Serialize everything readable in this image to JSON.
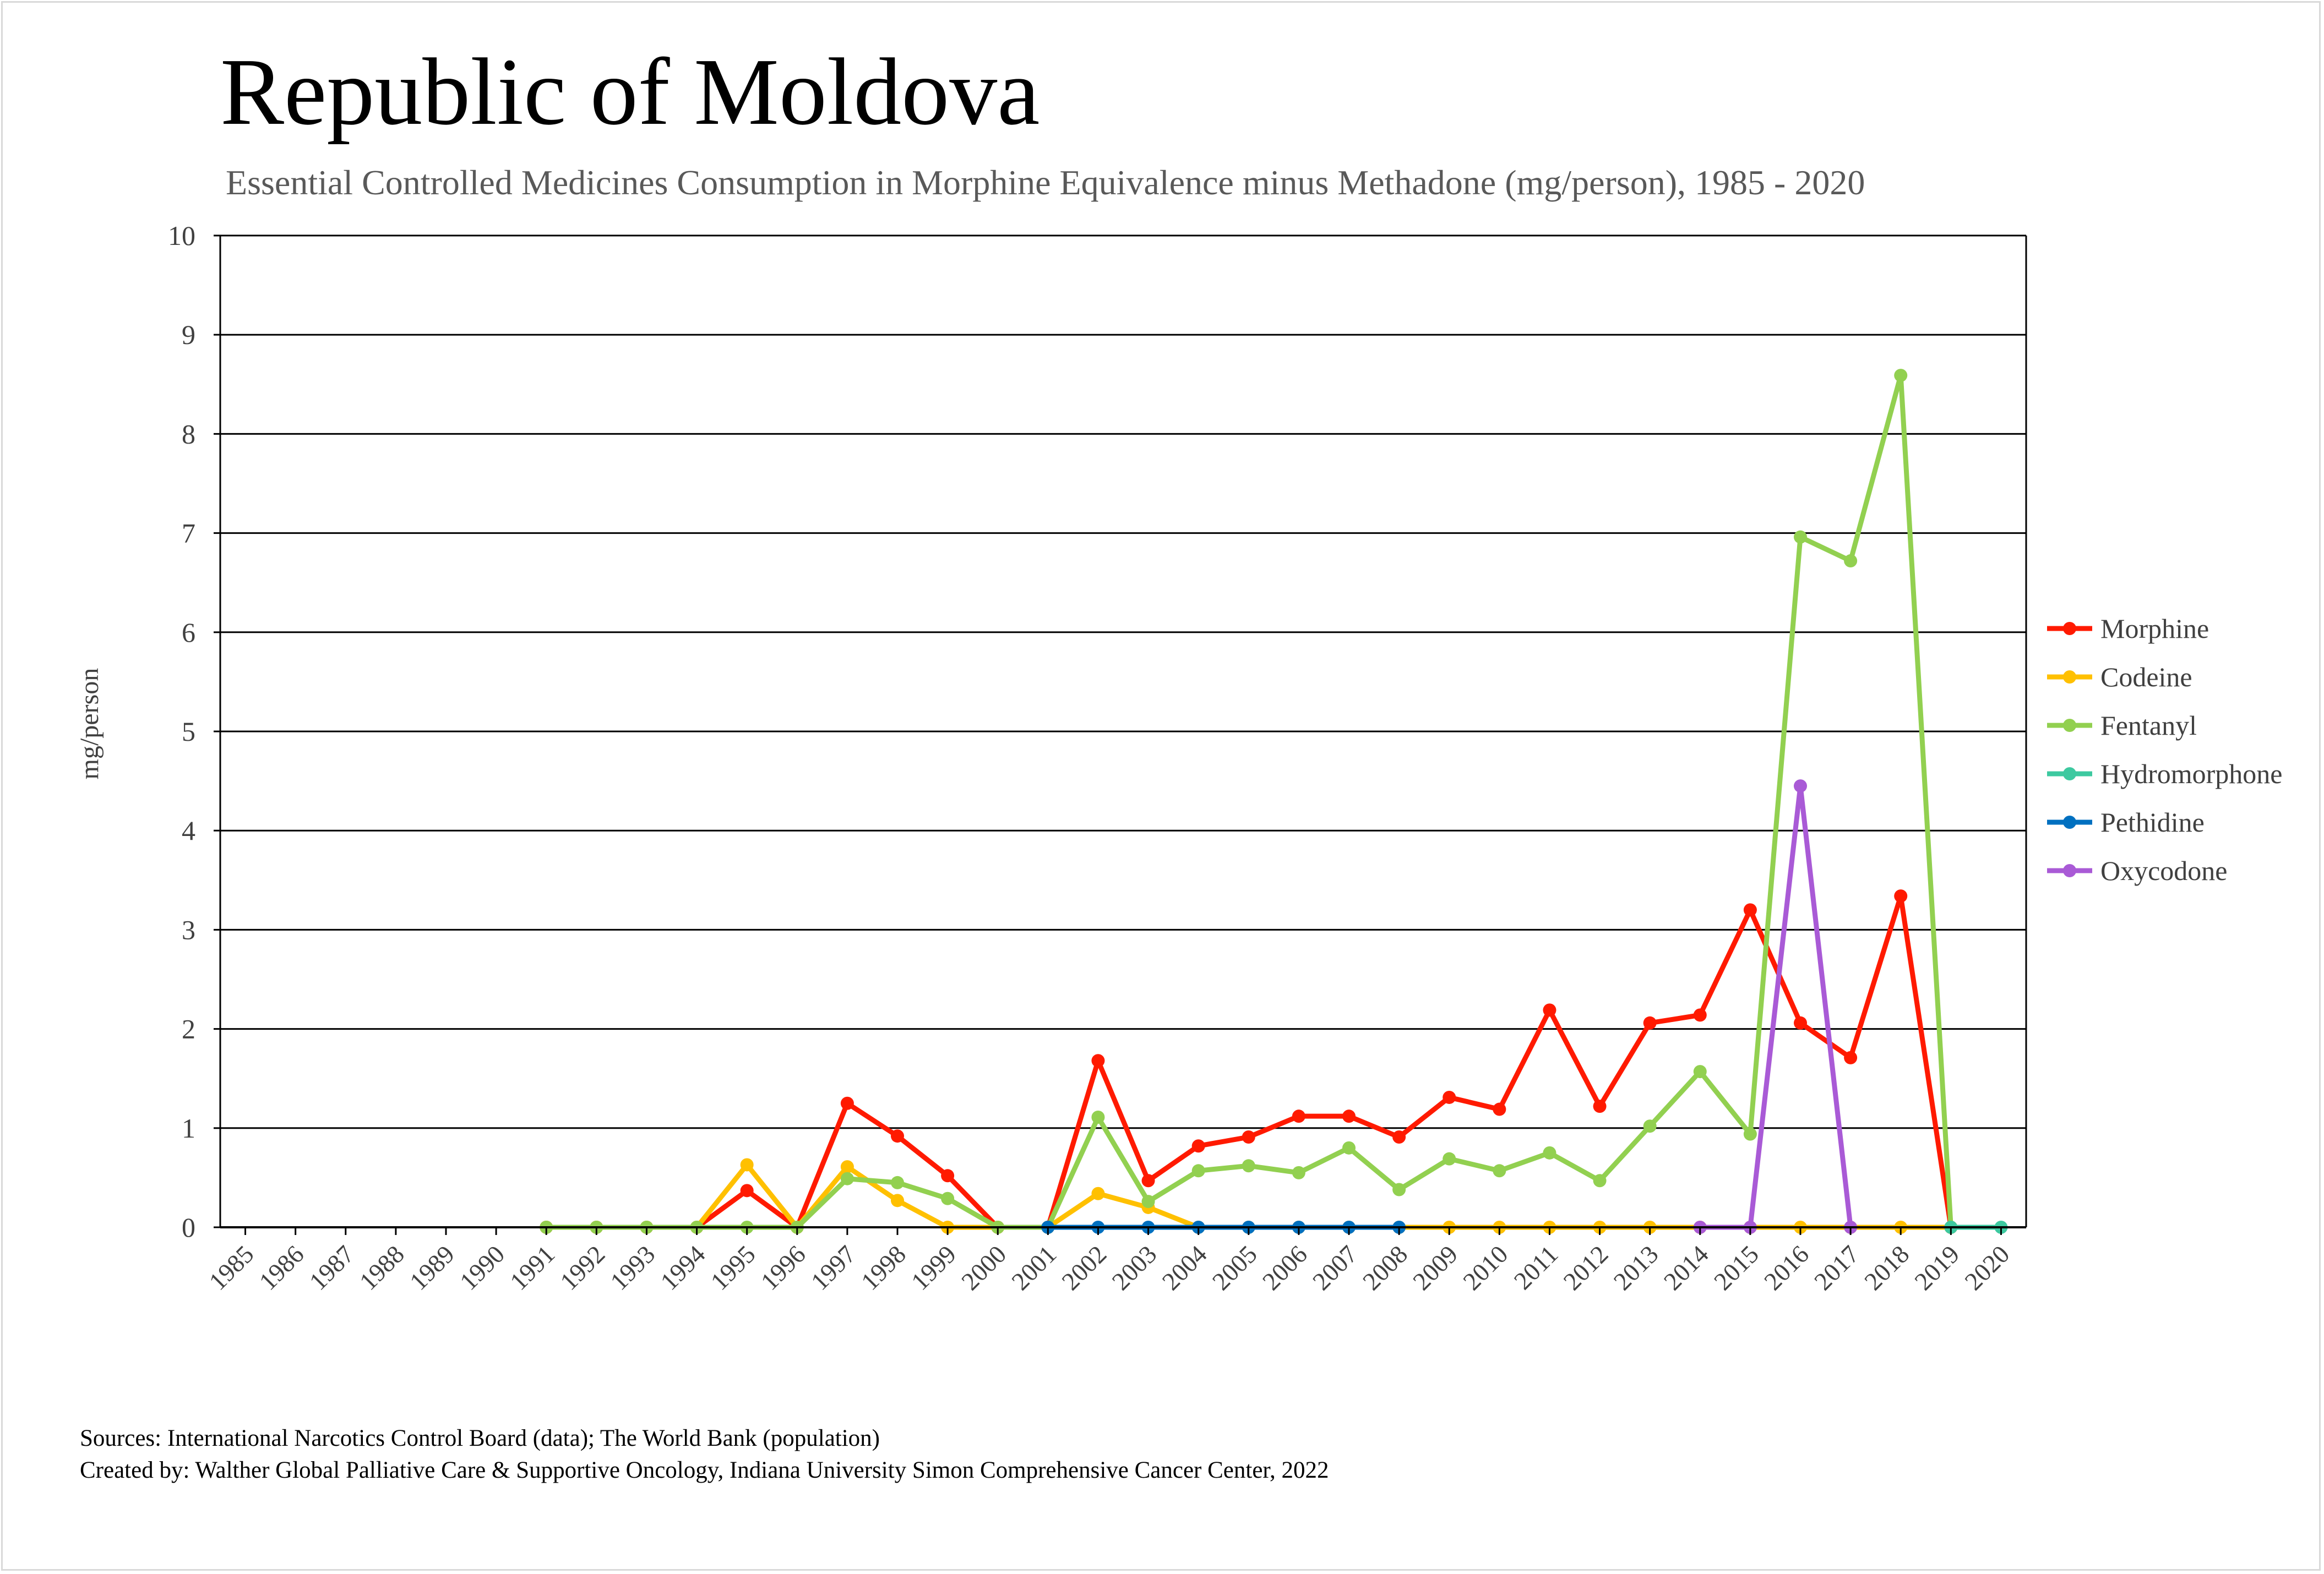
{
  "title": "Republic of Moldova",
  "subtitle": "Essential Controlled Medicines Consumption in Morphine Equivalence minus Methadone (mg/person), 1985 - 2020",
  "sources": {
    "line1": "Sources: International Narcotics Control Board (data); The World Bank (population)",
    "line2": "Created by: Walther Global Palliative Care & Supportive Oncology, Indiana University Simon Comprehensive Cancer Center, 2022"
  },
  "chart_data": {
    "type": "line",
    "title": "Republic of Moldova",
    "ylabel": "mg/person",
    "xlabel": "",
    "ylim": [
      0,
      10
    ],
    "yticks": [
      0,
      1,
      2,
      3,
      4,
      5,
      6,
      7,
      8,
      9,
      10
    ],
    "grid": true,
    "legend_position": "right",
    "categories": [
      "1985",
      "1986",
      "1987",
      "1988",
      "1989",
      "1990",
      "1991",
      "1992",
      "1993",
      "1994",
      "1995",
      "1996",
      "1997",
      "1998",
      "1999",
      "2000",
      "2001",
      "2002",
      "2003",
      "2004",
      "2005",
      "2006",
      "2007",
      "2008",
      "2009",
      "2010",
      "2011",
      "2012",
      "2013",
      "2014",
      "2015",
      "2016",
      "2017",
      "2018",
      "2019",
      "2020"
    ],
    "series": [
      {
        "name": "Morphine",
        "color": "#ff1a00",
        "values": [
          null,
          null,
          null,
          null,
          null,
          null,
          0,
          0,
          0,
          0,
          0.37,
          0,
          1.25,
          0.92,
          0.52,
          0,
          0,
          1.68,
          0.47,
          0.82,
          0.91,
          1.12,
          1.12,
          0.91,
          1.31,
          1.19,
          2.19,
          1.22,
          2.06,
          2.14,
          3.2,
          2.06,
          1.71,
          3.34,
          0,
          null
        ]
      },
      {
        "name": "Codeine",
        "color": "#ffc000",
        "values": [
          null,
          null,
          null,
          null,
          null,
          null,
          0,
          0,
          0,
          0,
          0.63,
          0,
          0.61,
          0.27,
          0,
          0,
          0,
          0.34,
          0.2,
          0,
          0,
          0,
          0,
          0,
          0,
          0,
          0,
          0,
          0,
          0,
          0,
          0,
          0,
          0,
          0,
          null
        ]
      },
      {
        "name": "Fentanyl",
        "color": "#92d050",
        "values": [
          null,
          null,
          null,
          null,
          null,
          null,
          0,
          0,
          0,
          0,
          0,
          0,
          0.49,
          0.45,
          0.29,
          0,
          0,
          1.11,
          0.26,
          0.57,
          0.62,
          0.55,
          0.8,
          0.38,
          0.69,
          0.57,
          0.75,
          0.47,
          1.02,
          1.57,
          0.94,
          6.96,
          6.72,
          8.59,
          0,
          null
        ]
      },
      {
        "name": "Hydromorphone",
        "color": "#3dc9a0",
        "values": [
          null,
          null,
          null,
          null,
          null,
          null,
          null,
          null,
          null,
          null,
          null,
          null,
          null,
          null,
          null,
          null,
          null,
          null,
          null,
          null,
          null,
          null,
          null,
          null,
          null,
          null,
          null,
          null,
          null,
          null,
          null,
          null,
          null,
          null,
          0,
          0
        ]
      },
      {
        "name": "Pethidine",
        "color": "#0070c0",
        "values": [
          null,
          null,
          null,
          null,
          null,
          null,
          null,
          null,
          null,
          null,
          null,
          null,
          null,
          null,
          null,
          null,
          0,
          0,
          0,
          0,
          0,
          0,
          0,
          0,
          null,
          null,
          null,
          null,
          null,
          null,
          null,
          null,
          null,
          null,
          null,
          null
        ]
      },
      {
        "name": "Oxycodone",
        "color": "#a95ad6",
        "values": [
          null,
          null,
          null,
          null,
          null,
          null,
          null,
          null,
          null,
          null,
          null,
          null,
          null,
          null,
          null,
          null,
          null,
          null,
          null,
          null,
          null,
          null,
          null,
          null,
          null,
          null,
          null,
          null,
          null,
          0,
          0,
          4.45,
          0,
          null,
          null,
          null
        ]
      }
    ]
  }
}
